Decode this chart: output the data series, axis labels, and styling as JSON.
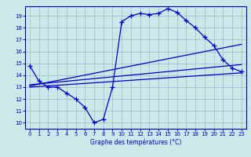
{
  "xlabel": "Graphe des températures (°C)",
  "xlim": [
    -0.5,
    23.5
  ],
  "ylim": [
    9.5,
    19.8
  ],
  "yticks": [
    10,
    11,
    12,
    13,
    14,
    15,
    16,
    17,
    18,
    19
  ],
  "xticks": [
    0,
    1,
    2,
    3,
    4,
    5,
    6,
    7,
    8,
    9,
    10,
    11,
    12,
    13,
    14,
    15,
    16,
    17,
    18,
    19,
    20,
    21,
    22,
    23
  ],
  "bg_color": "#cce8e8",
  "grid_color": "#99bbcc",
  "line_color": "#0000cc",
  "curve_x": [
    0,
    1,
    2,
    3,
    4,
    5,
    6,
    7,
    8,
    9,
    10,
    11,
    12,
    13,
    14,
    15,
    16,
    17,
    18,
    19,
    20,
    21,
    22,
    23
  ],
  "curve_y": [
    14.8,
    13.5,
    13.0,
    13.0,
    12.5,
    12.0,
    11.3,
    10.0,
    10.3,
    13.0,
    18.5,
    19.0,
    19.2,
    19.1,
    19.2,
    19.6,
    19.3,
    18.6,
    18.0,
    17.2,
    16.5,
    15.3,
    14.6,
    14.3
  ],
  "line1_x": [
    0,
    23
  ],
  "line1_y": [
    13.1,
    16.6
  ],
  "line2_x": [
    0,
    23
  ],
  "line2_y": [
    13.2,
    14.9
  ],
  "line3_x": [
    0,
    23
  ],
  "line3_y": [
    13.0,
    14.2
  ]
}
